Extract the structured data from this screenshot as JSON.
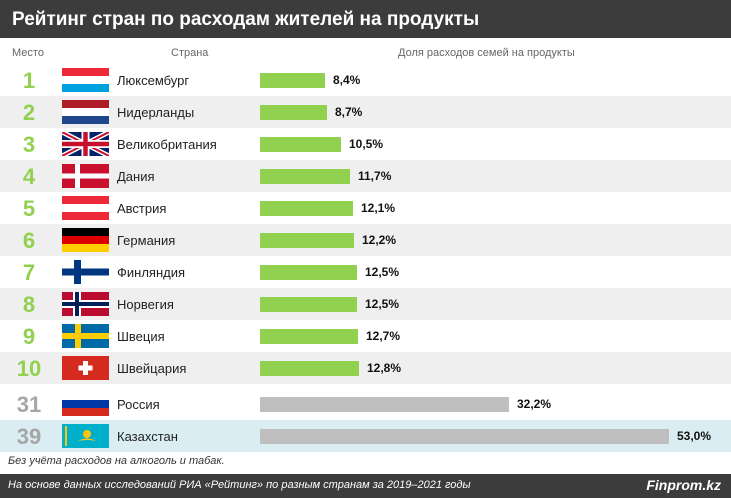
{
  "title": "Рейтинг стран по расходам жителей на продукты",
  "headers": {
    "rank": "Место",
    "country": "Страна",
    "share": "Доля расходов семей на продукты"
  },
  "chart_data": {
    "type": "bar",
    "orientation": "horizontal",
    "unit": "%",
    "rows": [
      {
        "rank": "1",
        "country": "Люксембург",
        "value": 8.4,
        "label": "8,4%",
        "flag": "luxembourg-flag"
      },
      {
        "rank": "2",
        "country": "Нидерланды",
        "value": 8.7,
        "label": "8,7%",
        "flag": "netherlands-flag"
      },
      {
        "rank": "3",
        "country": "Великобритания",
        "value": 10.5,
        "label": "10,5%",
        "flag": "uk-flag"
      },
      {
        "rank": "4",
        "country": "Дания",
        "value": 11.7,
        "label": "11,7%",
        "flag": "denmark-flag"
      },
      {
        "rank": "5",
        "country": "Австрия",
        "value": 12.1,
        "label": "12,1%",
        "flag": "austria-flag"
      },
      {
        "rank": "6",
        "country": "Германия",
        "value": 12.2,
        "label": "12,2%",
        "flag": "germany-flag"
      },
      {
        "rank": "7",
        "country": "Финляндия",
        "value": 12.5,
        "label": "12,5%",
        "flag": "finland-flag"
      },
      {
        "rank": "8",
        "country": "Норвегия",
        "value": 12.5,
        "label": "12,5%",
        "flag": "norway-flag"
      },
      {
        "rank": "9",
        "country": "Швеция",
        "value": 12.7,
        "label": "12,7%",
        "flag": "sweden-flag"
      },
      {
        "rank": "10",
        "country": "Швейцария",
        "value": 12.8,
        "label": "12,8%",
        "flag": "switzerland-flag"
      },
      {
        "rank": "31",
        "country": "Россия",
        "value": 32.2,
        "label": "32,2%",
        "flag": "russia-flag"
      },
      {
        "rank": "39",
        "country": "Казахстан",
        "value": 53.0,
        "label": "53,0%",
        "flag": "kazakhstan-flag",
        "highlight": true
      }
    ]
  },
  "colors": {
    "top_bar": "#92d050",
    "other_bar": "#bfbfbf",
    "top_rank": "#92d050",
    "other_rank": "#a6a6a6",
    "highlight_row": "#d9edf2"
  },
  "note": "Без учёта расходов на алкоголь и табак.",
  "footer": {
    "source": "На основе данных исследований РИА «Рейтинг» по разным странам за 2019–2021 годы",
    "brand": "Finprom.kz"
  }
}
